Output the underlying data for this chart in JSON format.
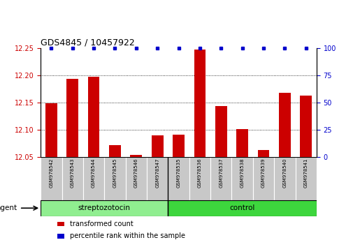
{
  "title": "GDS4845 / 10457922",
  "samples": [
    "GSM978542",
    "GSM978543",
    "GSM978544",
    "GSM978545",
    "GSM978546",
    "GSM978547",
    "GSM978535",
    "GSM978536",
    "GSM978537",
    "GSM978538",
    "GSM978539",
    "GSM978540",
    "GSM978541"
  ],
  "bar_values": [
    12.148,
    12.194,
    12.198,
    12.072,
    12.053,
    12.089,
    12.091,
    12.248,
    12.143,
    12.101,
    12.063,
    12.168,
    12.163
  ],
  "ylim_left": [
    12.05,
    12.25
  ],
  "ylim_right": [
    0,
    100
  ],
  "yticks_left": [
    12.05,
    12.1,
    12.15,
    12.2,
    12.25
  ],
  "yticks_right": [
    0,
    25,
    50,
    75,
    100
  ],
  "grid_lines": [
    12.1,
    12.15,
    12.2
  ],
  "groups": [
    {
      "label": "streptozotocin",
      "start": 0,
      "end": 6,
      "color": "#90EE90"
    },
    {
      "label": "control",
      "start": 6,
      "end": 13,
      "color": "#3DD63D"
    }
  ],
  "bar_color": "#CC0000",
  "percentile_color": "#0000CC",
  "bar_width": 0.55,
  "xlabel_color": "#CC0000",
  "ylabel_right_color": "#0000CC",
  "agent_label": "agent",
  "legend_items": [
    {
      "label": "transformed count",
      "color": "#CC0000"
    },
    {
      "label": "percentile rank within the sample",
      "color": "#0000CC"
    }
  ],
  "title_fontsize": 9,
  "tick_fontsize": 7,
  "label_fontsize": 5,
  "group_fontsize": 7.5,
  "legend_fontsize": 7
}
